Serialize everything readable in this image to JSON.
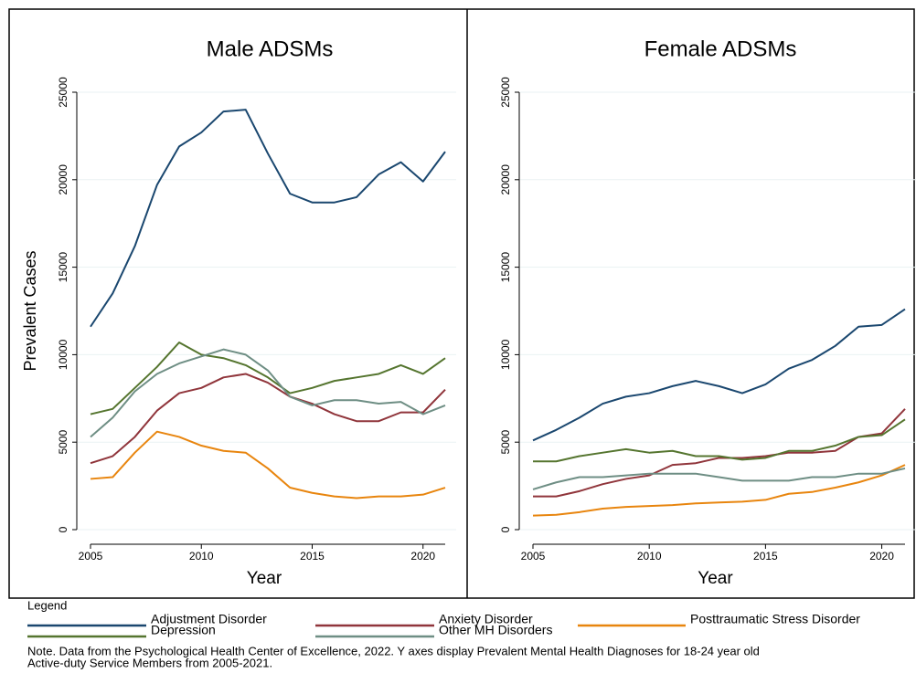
{
  "chart_data": [
    {
      "type": "line",
      "title": "Male ADSMs",
      "xlabel": "Year",
      "ylabel": "Prevalent Cases",
      "x": [
        2005,
        2006,
        2007,
        2008,
        2009,
        2010,
        2011,
        2012,
        2013,
        2014,
        2015,
        2016,
        2017,
        2018,
        2019,
        2020,
        2021
      ],
      "xlim": [
        2005,
        2021
      ],
      "xticks": [
        2005,
        2010,
        2015,
        2020
      ],
      "ylim": [
        0,
        25000
      ],
      "yticks": [
        0,
        5000,
        10000,
        15000,
        20000,
        25000
      ],
      "grid": true,
      "series": [
        {
          "name": "Adjustment Disorder",
          "color": "#1a476f",
          "values": [
            11600,
            13500,
            16200,
            19700,
            21900,
            22700,
            23900,
            24000,
            21500,
            19200,
            18700,
            18700,
            19000,
            20300,
            21000,
            19900,
            21600
          ]
        },
        {
          "name": "Anxiety Disorder",
          "color": "#90353b",
          "values": [
            3800,
            4200,
            5300,
            6800,
            7800,
            8100,
            8700,
            8900,
            8400,
            7600,
            7200,
            6600,
            6200,
            6200,
            6700,
            6700,
            8000
          ]
        },
        {
          "name": "Posttraumatic Stress Disorder",
          "color": "#e8850e",
          "values": [
            2900,
            3000,
            4400,
            5600,
            5300,
            4800,
            4500,
            4400,
            3500,
            2400,
            2100,
            1900,
            1800,
            1900,
            1900,
            2000,
            2400
          ]
        },
        {
          "name": "Depression",
          "color": "#55752f",
          "values": [
            6600,
            6900,
            8100,
            9300,
            10700,
            10000,
            9800,
            9400,
            8700,
            7800,
            8100,
            8500,
            8700,
            8900,
            9400,
            8900,
            9800
          ]
        },
        {
          "name": "Other MH Disorders",
          "color": "#6e8e84",
          "values": [
            5300,
            6400,
            7900,
            8900,
            9500,
            9900,
            10300,
            10000,
            9100,
            7600,
            7100,
            7400,
            7400,
            7200,
            7300,
            6600,
            7100
          ]
        }
      ]
    },
    {
      "type": "line",
      "title": "Female ADSMs",
      "xlabel": "Year",
      "x": [
        2005,
        2006,
        2007,
        2008,
        2009,
        2010,
        2011,
        2012,
        2013,
        2014,
        2015,
        2016,
        2017,
        2018,
        2019,
        2020,
        2021
      ],
      "xlim": [
        2005,
        2021
      ],
      "xticks": [
        2005,
        2010,
        2015,
        2020
      ],
      "ylim": [
        0,
        25000
      ],
      "yticks": [
        0,
        5000,
        10000,
        15000,
        20000,
        25000
      ],
      "grid": true,
      "series": [
        {
          "name": "Adjustment Disorder",
          "color": "#1a476f",
          "values": [
            5100,
            5700,
            6400,
            7200,
            7600,
            7800,
            8200,
            8500,
            8200,
            7800,
            8300,
            9200,
            9700,
            10500,
            11600,
            11700,
            12600
          ]
        },
        {
          "name": "Anxiety Disorder",
          "color": "#90353b",
          "values": [
            1900,
            1900,
            2200,
            2600,
            2900,
            3100,
            3700,
            3800,
            4100,
            4100,
            4200,
            4400,
            4400,
            4500,
            5300,
            5500,
            6900
          ]
        },
        {
          "name": "Posttraumatic Stress Disorder",
          "color": "#e8850e",
          "values": [
            800,
            850,
            1000,
            1200,
            1300,
            1350,
            1400,
            1500,
            1550,
            1600,
            1700,
            2050,
            2150,
            2400,
            2700,
            3100,
            3700
          ]
        },
        {
          "name": "Depression",
          "color": "#55752f",
          "values": [
            3900,
            3900,
            4200,
            4400,
            4600,
            4400,
            4500,
            4200,
            4200,
            4000,
            4100,
            4500,
            4500,
            4800,
            5300,
            5400,
            6300
          ]
        },
        {
          "name": "Other MH Disorders",
          "color": "#6e8e84",
          "values": [
            2300,
            2700,
            3000,
            3000,
            3100,
            3200,
            3200,
            3200,
            3000,
            2800,
            2800,
            2800,
            3000,
            3000,
            3200,
            3200,
            3500
          ]
        }
      ]
    }
  ],
  "legend": {
    "title": "Legend"
  },
  "note": [
    "Note. Data from the Psychological Health Center of Excellence, 2022.  Y axes display Prevalent Mental Health Diagnoses for 18-24 year old",
    "Active-duty Service Members from 2005-2021."
  ]
}
